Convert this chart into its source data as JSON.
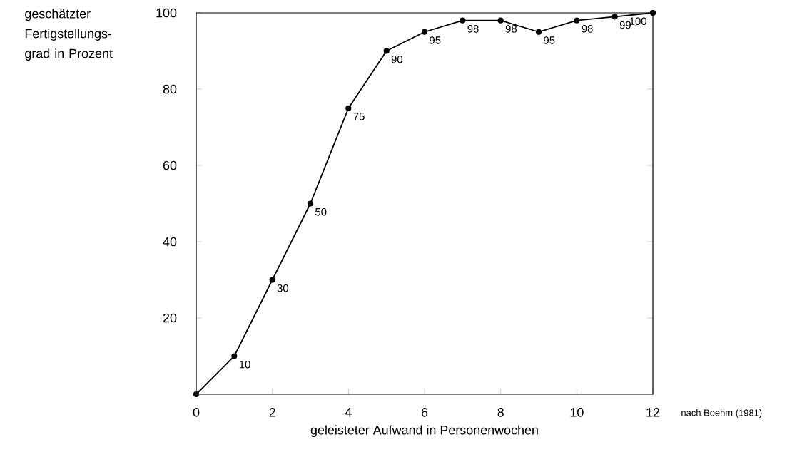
{
  "chart_data": {
    "type": "line",
    "ylabel": "geschätzter Fertigstellungs-grad in Prozent",
    "xlabel": "geleisteter Aufwand in Personenwochen",
    "annotations": [
      "nach Boehm (1981)"
    ],
    "x": [
      0,
      1,
      2,
      3,
      4,
      5,
      6,
      7,
      8,
      9,
      10,
      11,
      12
    ],
    "values": [
      0,
      10,
      30,
      50,
      75,
      90,
      95,
      98,
      98,
      95,
      98,
      99,
      100
    ],
    "value_labels": [
      null,
      "10",
      "30",
      "50",
      "75",
      "90",
      "95",
      "98",
      "98",
      "95",
      "98",
      "99",
      "100"
    ],
    "color": "#000000",
    "marker": "circle",
    "xlim": [
      0,
      12
    ],
    "ylim": [
      0,
      100
    ],
    "xticks": [
      0,
      2,
      4,
      6,
      8,
      10,
      12
    ],
    "yticks": [
      20,
      40,
      60,
      80,
      100
    ],
    "grid": false
  }
}
